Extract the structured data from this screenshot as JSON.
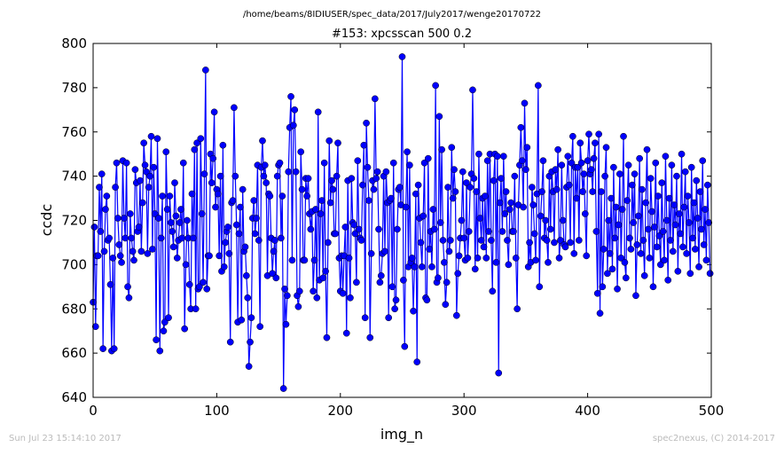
{
  "chart_data": {
    "type": "line",
    "header": "/home/beams/8IDIUSER/spec_data/2017/July2017/wenge20170722",
    "title": "#153: xpcsscan 500 0.2",
    "xlabel": "img_n",
    "ylabel": "ccdc",
    "footer_left": "Sun Jul 23 15:14:10 2017",
    "footer_right": "spec2nexus, (C) 2014-2017",
    "xlim": [
      0,
      500
    ],
    "ylim": [
      640,
      800
    ],
    "xticks": [
      0,
      100,
      200,
      300,
      400,
      500
    ],
    "yticks": [
      640,
      660,
      680,
      700,
      720,
      740,
      760,
      780,
      800
    ],
    "marker": "o",
    "x": [
      0,
      1,
      2,
      3,
      4,
      5,
      6,
      7,
      8,
      9,
      10,
      11,
      12,
      13,
      14,
      15,
      16,
      17,
      18,
      19,
      20,
      21,
      22,
      23,
      24,
      25,
      26,
      27,
      28,
      29,
      30,
      31,
      32,
      33,
      34,
      35,
      36,
      37,
      38,
      39,
      40,
      41,
      42,
      43,
      44,
      45,
      46,
      47,
      48,
      49,
      50,
      51,
      52,
      53,
      54,
      55,
      56,
      57,
      58,
      59,
      60,
      61,
      62,
      63,
      64,
      65,
      66,
      67,
      68,
      69,
      70,
      71,
      72,
      73,
      74,
      75,
      76,
      77,
      78,
      79,
      80,
      81,
      82,
      83,
      84,
      85,
      86,
      87,
      88,
      89,
      90,
      91,
      92,
      93,
      94,
      95,
      96,
      97,
      98,
      99,
      100,
      101,
      102,
      103,
      104,
      105,
      106,
      107,
      108,
      109,
      110,
      111,
      112,
      113,
      114,
      115,
      116,
      117,
      118,
      119,
      120,
      121,
      122,
      123,
      124,
      125,
      126,
      127,
      128,
      129,
      130,
      131,
      132,
      133,
      134,
      135,
      136,
      137,
      138,
      139,
      140,
      141,
      142,
      143,
      144,
      145,
      146,
      147,
      148,
      149,
      150,
      151,
      152,
      153,
      154,
      155,
      156,
      157,
      158,
      159,
      160,
      161,
      162,
      163,
      164,
      165,
      166,
      167,
      168,
      169,
      170,
      171,
      172,
      173,
      174,
      175,
      176,
      177,
      178,
      179,
      180,
      181,
      182,
      183,
      184,
      185,
      186,
      187,
      188,
      189,
      190,
      191,
      192,
      193,
      194,
      195,
      196,
      197,
      198,
      199,
      200,
      201,
      202,
      203,
      204,
      205,
      206,
      207,
      208,
      209,
      210,
      211,
      212,
      213,
      214,
      215,
      216,
      217,
      218,
      219,
      220,
      221,
      222,
      223,
      224,
      225,
      226,
      227,
      228,
      229,
      230,
      231,
      232,
      233,
      234,
      235,
      236,
      237,
      238,
      239,
      240,
      241,
      242,
      243,
      244,
      245,
      246,
      247,
      248,
      249,
      250,
      251,
      252,
      253,
      254,
      255,
      256,
      257,
      258,
      259,
      260,
      261,
      262,
      263,
      264,
      265,
      266,
      267,
      268,
      269,
      270,
      271,
      272,
      273,
      274,
      275,
      276,
      277,
      278,
      279,
      280,
      281,
      282,
      283,
      284,
      285,
      286,
      287,
      288,
      289,
      290,
      291,
      292,
      293,
      294,
      295,
      296,
      297,
      298,
      299,
      300,
      301,
      302,
      303,
      304,
      305,
      306,
      307,
      308,
      309,
      310,
      311,
      312,
      313,
      314,
      315,
      316,
      317,
      318,
      319,
      320,
      321,
      322,
      323,
      324,
      325,
      326,
      327,
      328,
      329,
      330,
      331,
      332,
      333,
      334,
      335,
      336,
      337,
      338,
      339,
      340,
      341,
      342,
      343,
      344,
      345,
      346,
      347,
      348,
      349,
      350,
      351,
      352,
      353,
      354,
      355,
      356,
      357,
      358,
      359,
      360,
      361,
      362,
      363,
      364,
      365,
      366,
      367,
      368,
      369,
      370,
      371,
      372,
      373,
      374,
      375,
      376,
      377,
      378,
      379,
      380,
      381,
      382,
      383,
      384,
      385,
      386,
      387,
      388,
      389,
      390,
      391,
      392,
      393,
      394,
      395,
      396,
      397,
      398,
      399,
      400,
      401,
      402,
      403,
      404,
      405,
      406,
      407,
      408,
      409,
      410,
      411,
      412,
      413,
      414,
      415,
      416,
      417,
      418,
      419,
      420,
      421,
      422,
      423,
      424,
      425,
      426,
      427,
      428,
      429,
      430,
      431,
      432,
      433,
      434,
      435,
      436,
      437,
      438,
      439,
      440,
      441,
      442,
      443,
      444,
      445,
      446,
      447,
      448,
      449,
      450,
      451,
      452,
      453,
      454,
      455,
      456,
      457,
      458,
      459,
      460,
      461,
      462,
      463,
      464,
      465,
      466,
      467,
      468,
      469,
      470,
      471,
      472,
      473,
      474,
      475,
      476,
      477,
      478,
      479,
      480,
      481,
      482,
      483,
      484,
      485,
      486,
      487,
      488,
      489,
      490,
      491,
      492,
      493,
      494,
      495,
      496,
      497,
      498,
      499
    ],
    "series": [
      {
        "color": "#0000ff",
        "values": [
          683,
          717,
          672,
          704,
          704,
          735,
          715,
          741,
          662,
          706,
          725,
          731,
          711,
          712,
          691,
          661,
          703,
          662,
          735,
          746,
          721,
          709,
          704,
          701,
          747,
          721,
          712,
          746,
          690,
          685,
          723,
          712,
          706,
          702,
          743,
          737,
          715,
          717,
          738,
          706,
          728,
          755,
          745,
          742,
          705,
          735,
          740,
          758,
          707,
          744,
          723,
          666,
          757,
          721,
          661,
          712,
          731,
          670,
          674,
          751,
          725,
          676,
          731,
          719,
          715,
          708,
          737,
          722,
          703,
          711,
          719,
          725,
          712,
          746,
          671,
          700,
          720,
          712,
          691,
          680,
          732,
          712,
          752,
          680,
          755,
          689,
          690,
          757,
          723,
          692,
          741,
          788,
          689,
          704,
          704,
          750,
          737,
          748,
          769,
          726,
          734,
          732,
          704,
          740,
          697,
          754,
          699,
          710,
          715,
          717,
          705,
          665,
          728,
          729,
          771,
          740,
          718,
          674,
          714,
          726,
          675,
          734,
          706,
          708,
          695,
          685,
          654,
          665,
          676,
          721,
          729,
          714,
          721,
          745,
          711,
          672,
          744,
          756,
          740,
          745,
          737,
          695,
          732,
          731,
          712,
          696,
          706,
          711,
          694,
          740,
          745,
          746,
          712,
          731,
          644,
          689,
          673,
          686,
          742,
          762,
          776,
          702,
          763,
          770,
          742,
          686,
          681,
          688,
          751,
          734,
          702,
          702,
          739,
          731,
          739,
          723,
          716,
          724,
          688,
          702,
          725,
          685,
          769,
          693,
          723,
          729,
          694,
          746,
          697,
          667,
          710,
          756,
          728,
          738,
          734,
          714,
          714,
          740,
          755,
          703,
          688,
          704,
          687,
          704,
          717,
          669,
          738,
          703,
          685,
          739,
          719,
          718,
          714,
          692,
          747,
          716,
          712,
          711,
          736,
          754,
          676,
          764,
          744,
          729,
          667,
          705,
          738,
          734,
          775,
          739,
          742,
          716,
          692,
          695,
          705,
          740,
          706,
          742,
          728,
          676,
          729,
          730,
          690,
          746,
          680,
          684,
          716,
          734,
          735,
          727,
          794,
          693,
          663,
          726,
          751,
          699,
          745,
          701,
          703,
          679,
          699,
          732,
          656,
          736,
          721,
          710,
          699,
          722,
          746,
          685,
          684,
          748,
          707,
          715,
          699,
          725,
          716,
          781,
          692,
          694,
          767,
          719,
          752,
          711,
          701,
          682,
          692,
          735,
          706,
          711,
          753,
          730,
          743,
          733,
          677,
          696,
          704,
          712,
          720,
          742,
          712,
          702,
          737,
          703,
          715,
          735,
          741,
          779,
          739,
          698,
          733,
          703,
          750,
          721,
          711,
          730,
          708,
          731,
          703,
          747,
          715,
          750,
          711,
          688,
          738,
          750,
          701,
          749,
          651,
          728,
          739,
          715,
          749,
          723,
          733,
          711,
          700,
          725,
          728,
          715,
          715,
          740,
          703,
          680,
          727,
          745,
          762,
          747,
          726,
          773,
          743,
          753,
          699,
          710,
          701,
          735,
          727,
          714,
          702,
          732,
          781,
          690,
          722,
          733,
          747,
          712,
          720,
          711,
          701,
          740,
          716,
          742,
          733,
          710,
          743,
          734,
          752,
          703,
          711,
          745,
          720,
          709,
          708,
          735,
          749,
          736,
          710,
          746,
          758,
          705,
          744,
          730,
          744,
          711,
          755,
          746,
          733,
          741,
          723,
          704,
          747,
          759,
          741,
          743,
          733,
          748,
          755,
          715,
          687,
          759,
          678,
          733,
          690,
          707,
          740,
          753,
          696,
          720,
          705,
          730,
          698,
          744,
          712,
          726,
          689,
          718,
          741,
          703,
          725,
          758,
          701,
          694,
          729,
          745,
          712,
          707,
          736,
          719,
          741,
          686,
          709,
          722,
          748,
          705,
          734,
          711,
          695,
          728,
          752,
          716,
          703,
          739,
          724,
          690,
          717,
          746,
          708,
          731,
          713,
          700,
          737,
          715,
          702,
          749,
          720,
          693,
          730,
          711,
          745,
          706,
          727,
          718,
          740,
          697,
          723,
          714,
          750,
          708,
          726,
          742,
          705,
          731,
          719,
          696,
          744,
          712,
          728,
          707,
          738,
          721,
          699,
          733,
          716,
          747,
          709,
          725,
          702,
          736,
          719,
          696
        ]
      }
    ]
  }
}
